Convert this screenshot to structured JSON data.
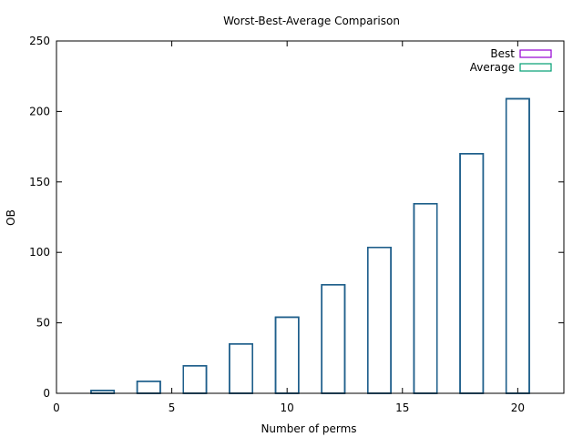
{
  "chart_data": {
    "type": "bar",
    "title": "Worst-Best-Average Comparison",
    "xlabel": "Number of perms",
    "ylabel": "OB",
    "xlim": [
      0,
      22
    ],
    "ylim": [
      0,
      250
    ],
    "xticks": [
      0,
      5,
      10,
      15,
      20
    ],
    "yticks": [
      0,
      50,
      100,
      150,
      200,
      250
    ],
    "x": [
      2,
      4,
      6,
      8,
      10,
      12,
      14,
      16,
      18,
      20
    ],
    "legend_position": "top-right",
    "grid": false,
    "series": [
      {
        "name": "Best",
        "color": "#9400d3",
        "values": [
          2,
          8.5,
          19.5,
          35,
          54,
          77,
          103.5,
          134.5,
          170,
          209
        ]
      },
      {
        "name": "Average",
        "color": "#009e73",
        "values": [
          2,
          8.5,
          19.5,
          35,
          54,
          77,
          103.5,
          134.5,
          170,
          209
        ]
      },
      {
        "name": "",
        "color": "#56b4e9",
        "values": [
          2,
          8.5,
          19.5,
          35,
          54,
          77,
          103.5,
          134.5,
          170,
          209
        ]
      }
    ],
    "overlap_color": "#1f5f8b"
  }
}
